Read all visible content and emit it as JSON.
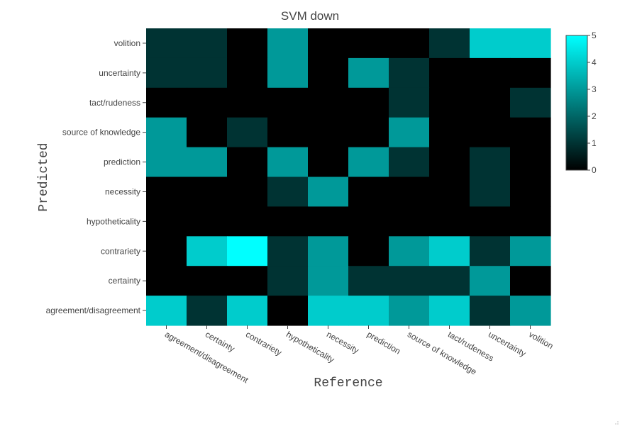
{
  "chart_data": {
    "type": "heatmap",
    "title": "SVM down",
    "xlabel": "Reference",
    "ylabel": "Predicted",
    "x_categories": [
      "agreement/disagreement",
      "certainty",
      "contrariety",
      "hypotheticality",
      "necessity",
      "prediction",
      "source of knowledge",
      "tact/rudeness",
      "uncertainty",
      "volition"
    ],
    "y_categories": [
      "volition",
      "uncertainty",
      "tact/rudeness",
      "source of knowledge",
      "prediction",
      "necessity",
      "hypotheticality",
      "contrariety",
      "certainty",
      "agreement/disagreement"
    ],
    "z": [
      [
        1,
        1,
        0,
        3,
        0,
        0,
        0,
        1,
        4,
        4
      ],
      [
        1,
        1,
        0,
        3,
        0,
        3,
        1,
        0,
        0,
        0
      ],
      [
        0,
        0,
        0,
        0,
        0,
        0,
        1,
        0,
        0,
        1
      ],
      [
        3,
        0,
        1,
        0,
        0,
        0,
        3,
        0,
        0,
        0
      ],
      [
        3,
        3,
        0,
        3,
        0,
        3,
        1,
        0,
        1,
        0
      ],
      [
        0,
        0,
        0,
        1,
        3,
        0,
        0,
        0,
        1,
        0
      ],
      [
        0,
        0,
        0,
        0,
        0,
        0,
        0,
        0,
        0,
        0
      ],
      [
        0,
        4,
        5,
        1,
        3,
        0,
        3,
        4,
        1,
        3
      ],
      [
        0,
        0,
        0,
        1,
        3,
        1,
        1,
        1,
        3,
        0
      ],
      [
        4,
        1,
        4,
        0,
        4,
        4,
        3,
        4,
        1,
        3
      ]
    ],
    "zrange": [
      0,
      5
    ],
    "colorscale": [
      "#000000",
      "#00ffff"
    ],
    "colorbar_ticks": [
      0,
      1,
      2,
      3,
      4,
      5
    ]
  }
}
